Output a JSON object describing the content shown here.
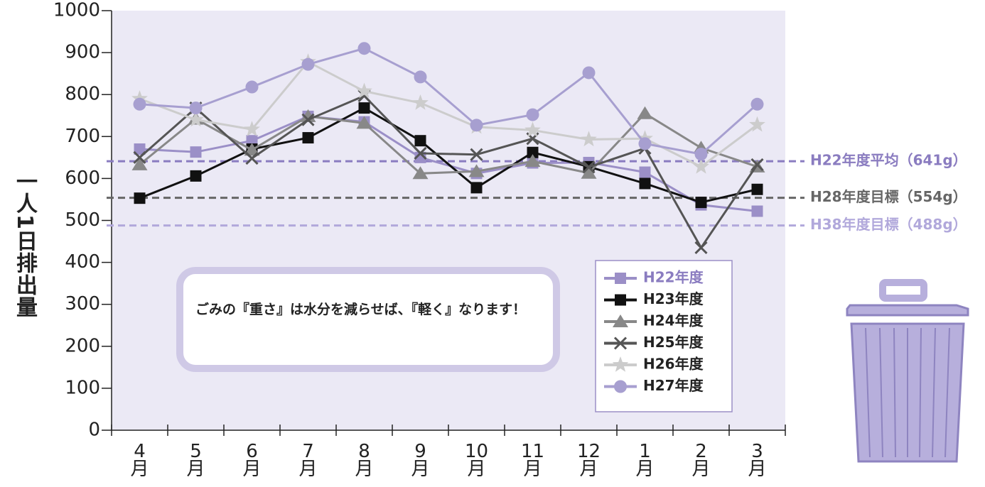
{
  "chart_data": {
    "type": "line",
    "y_label": "一人1日排出量",
    "categories": [
      "4\n月",
      "5\n月",
      "6\n月",
      "7\n月",
      "8\n月",
      "9\n月",
      "10\n月",
      "11\n月",
      "12\n月",
      "1\n月",
      "2\n月",
      "3\n月"
    ],
    "ylim": [
      0,
      1000
    ],
    "yticks": [
      0,
      100,
      200,
      300,
      400,
      500,
      600,
      700,
      800,
      900,
      1000
    ],
    "series": [
      {
        "name": "H22年度",
        "color": "#9b8fc7",
        "marker": "square",
        "values": [
          670,
          663,
          690,
          748,
          735,
          650,
          612,
          637,
          638,
          615,
          537,
          522
        ]
      },
      {
        "name": "H23年度",
        "color": "#111111",
        "marker": "square",
        "values": [
          553,
          606,
          670,
          697,
          768,
          690,
          578,
          662,
          628,
          588,
          543,
          574
        ]
      },
      {
        "name": "H24年度",
        "color": "#888888",
        "marker": "triangle",
        "values": [
          633,
          742,
          668,
          748,
          732,
          612,
          617,
          641,
          613,
          755,
          673,
          628
        ]
      },
      {
        "name": "H25年度",
        "color": "#555555",
        "marker": "cross",
        "values": [
          650,
          768,
          648,
          740,
          797,
          660,
          657,
          695,
          627,
          672,
          435,
          633
        ]
      },
      {
        "name": "H26年度",
        "color": "#cccccc",
        "marker": "star",
        "values": [
          790,
          740,
          717,
          878,
          808,
          780,
          723,
          715,
          693,
          695,
          628,
          728
        ]
      },
      {
        "name": "H27年度",
        "color": "#a79fd0",
        "marker": "circle",
        "values": [
          777,
          768,
          818,
          872,
          910,
          842,
          727,
          752,
          852,
          683,
          658,
          777
        ]
      }
    ],
    "reference_lines": [
      {
        "value": 641,
        "label": "H22年度平均（641g）",
        "color": "#8a7cc0"
      },
      {
        "value": 554,
        "label": "H28年度目標（554g）",
        "color": "#666666"
      },
      {
        "value": 488,
        "label": "H38年度目標（488g）",
        "color": "#b1a8db"
      }
    ],
    "annotation": "ごみの『重さ』は水分を減らせば、『軽く』なります！"
  }
}
